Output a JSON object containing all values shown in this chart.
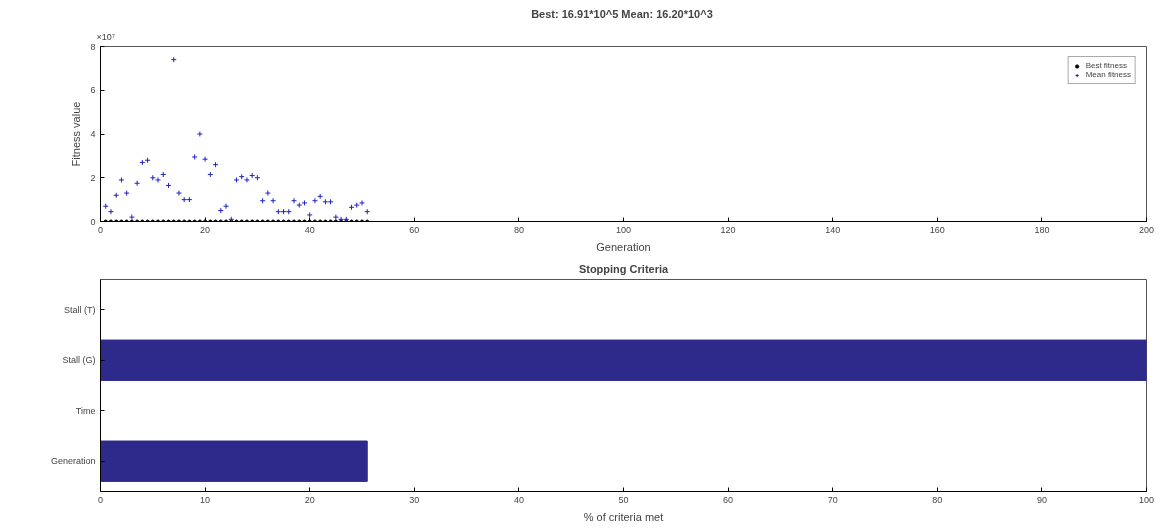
{
  "chart_data": [
    {
      "type": "scatter",
      "title": "Best: 16.91*10^5  Mean: 16.20*10^3",
      "xlabel": "Generation",
      "ylabel": "Fitness value",
      "annotations": [
        "×10⁷"
      ],
      "x": [
        1,
        2,
        3,
        4,
        5,
        6,
        7,
        8,
        9,
        10,
        11,
        12,
        13,
        14,
        15,
        16,
        17,
        18,
        19,
        20,
        21,
        22,
        23,
        24,
        25,
        26,
        27,
        28,
        29,
        30,
        31,
        32,
        33,
        34,
        35,
        36,
        37,
        38,
        39,
        40,
        41,
        42,
        43,
        44,
        45,
        46,
        47,
        48,
        49,
        50,
        51
      ],
      "series": [
        {
          "name": "Best fitness",
          "color": "#000000",
          "marker": "circle",
          "values": [
            0,
            0,
            0,
            0,
            0,
            0,
            0,
            0,
            0,
            0,
            0,
            0,
            0,
            0,
            0,
            0,
            0,
            0,
            0,
            0,
            0,
            0,
            0,
            0,
            0,
            0,
            0,
            0,
            0,
            0,
            0,
            0,
            0,
            0,
            0,
            0,
            0,
            0,
            0,
            0,
            0,
            0,
            0,
            0,
            0,
            0,
            0,
            0,
            0,
            0,
            0
          ]
        },
        {
          "name": "Mean fitness",
          "color": "#2020c0",
          "marker": "cross",
          "values": [
            0.7,
            0.45,
            1.2,
            1.9,
            1.3,
            0.2,
            1.75,
            2.7,
            2.8,
            2.0,
            1.9,
            2.15,
            1.65,
            7.4,
            1.3,
            1.0,
            1.0,
            2.95,
            4.0,
            2.85,
            2.15,
            2.6,
            0.5,
            0.7,
            0.1,
            1.9,
            2.05,
            1.9,
            2.1,
            2.0,
            0.95,
            1.3,
            0.95,
            0.45,
            0.45,
            0.45,
            0.95,
            0.75,
            0.85,
            0.3,
            0.95,
            1.15,
            0.9,
            0.9,
            0.2,
            0.1,
            0.1,
            0.65,
            0.75,
            0.85,
            0.45
          ]
        }
      ],
      "xlim": [
        0,
        200
      ],
      "xticks": [
        0,
        20,
        40,
        60,
        80,
        100,
        120,
        140,
        160,
        180,
        200
      ],
      "ylim": [
        0,
        8
      ],
      "yticks": [
        0,
        2,
        4,
        6,
        8
      ],
      "legend": "top right",
      "grid": false
    },
    {
      "type": "bar",
      "orientation": "horizontal",
      "title": "Stopping Criteria",
      "xlabel": "% of criteria met",
      "categories": [
        "Stall (T)",
        "Stall (G)",
        "Time",
        "Generation"
      ],
      "values": [
        0,
        100,
        0,
        25.5
      ],
      "color": "#2e2a8c",
      "xlim": [
        0,
        100
      ],
      "xticks": [
        0,
        10,
        20,
        30,
        40,
        50,
        60,
        70,
        80,
        90,
        100
      ],
      "grid": false
    }
  ]
}
